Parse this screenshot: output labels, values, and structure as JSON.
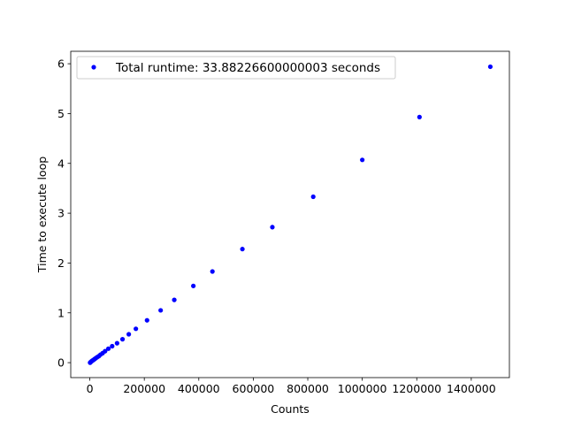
{
  "chart_data": {
    "type": "scatter",
    "xlabel": "Counts",
    "ylabel": "Time to execute loop",
    "xlim": [
      -70000,
      1540000
    ],
    "ylim": [
      -0.3,
      6.25
    ],
    "xticks": [
      0,
      200000,
      400000,
      600000,
      800000,
      1000000,
      1200000,
      1400000
    ],
    "xtick_labels": [
      "0",
      "200000",
      "400000",
      "600000",
      "800000",
      "1000000",
      "1200000",
      "1400000"
    ],
    "yticks": [
      0,
      1,
      2,
      3,
      4,
      5,
      6
    ],
    "ytick_labels": [
      "0",
      "1",
      "2",
      "3",
      "4",
      "5",
      "6"
    ],
    "grid": false,
    "legend_position": "top-left",
    "series": [
      {
        "name": "Total runtime: 33.88226600000003 seconds",
        "color": "#0000ff",
        "marker": "dot",
        "points": [
          {
            "x": 1000,
            "y": 0.0
          },
          {
            "x": 2000,
            "y": 0.005
          },
          {
            "x": 3000,
            "y": 0.01
          },
          {
            "x": 5000,
            "y": 0.02
          },
          {
            "x": 7000,
            "y": 0.03
          },
          {
            "x": 9000,
            "y": 0.04
          },
          {
            "x": 12000,
            "y": 0.05
          },
          {
            "x": 15000,
            "y": 0.06
          },
          {
            "x": 18000,
            "y": 0.075
          },
          {
            "x": 22000,
            "y": 0.09
          },
          {
            "x": 27000,
            "y": 0.11
          },
          {
            "x": 33000,
            "y": 0.13
          },
          {
            "x": 39000,
            "y": 0.16
          },
          {
            "x": 47000,
            "y": 0.19
          },
          {
            "x": 56000,
            "y": 0.23
          },
          {
            "x": 68000,
            "y": 0.28
          },
          {
            "x": 82000,
            "y": 0.33
          },
          {
            "x": 100000,
            "y": 0.39
          },
          {
            "x": 120000,
            "y": 0.47
          },
          {
            "x": 143000,
            "y": 0.57
          },
          {
            "x": 169000,
            "y": 0.68
          },
          {
            "x": 210000,
            "y": 0.85
          },
          {
            "x": 260000,
            "y": 1.05
          },
          {
            "x": 310000,
            "y": 1.26
          },
          {
            "x": 380000,
            "y": 1.54
          },
          {
            "x": 450000,
            "y": 1.83
          },
          {
            "x": 560000,
            "y": 2.28
          },
          {
            "x": 670000,
            "y": 2.72
          },
          {
            "x": 820000,
            "y": 3.33
          },
          {
            "x": 1000000,
            "y": 4.07
          },
          {
            "x": 1210000,
            "y": 4.93
          },
          {
            "x": 1470000,
            "y": 5.94
          }
        ]
      }
    ]
  }
}
